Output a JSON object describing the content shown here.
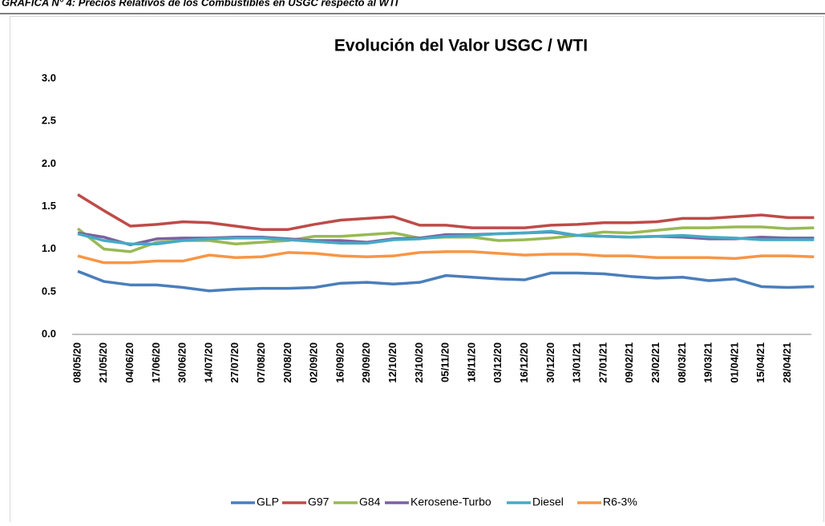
{
  "caption": "GRÁFICA N° 4: Precios Relativos de los Combustibles en USGC respecto al WTI",
  "chart_data": {
    "type": "line",
    "title": "Evolución del Valor USGC / WTI",
    "categories": [
      "08/05/20",
      "21/05/20",
      "04/06/20",
      "17/06/20",
      "30/06/20",
      "14/07/20",
      "27/07/20",
      "07/08/20",
      "20/08/20",
      "02/09/20",
      "16/09/20",
      "29/09/20",
      "12/10/20",
      "23/10/20",
      "05/11/20",
      "18/11/20",
      "03/12/20",
      "16/12/20",
      "30/12/20",
      "13/01/21",
      "27/01/21",
      "09/02/21",
      "23/02/21",
      "08/03/21",
      "19/03/21",
      "01/04/21",
      "15/04/21",
      "28/04/21",
      null
    ],
    "series": [
      {
        "name": "GLP",
        "color": "#4a7ebb",
        "values": [
          0.74,
          0.62,
          0.58,
          0.58,
          0.55,
          0.51,
          0.53,
          0.54,
          0.54,
          0.55,
          0.6,
          0.61,
          0.59,
          0.61,
          0.69,
          0.67,
          0.65,
          0.64,
          0.72,
          0.72,
          0.71,
          0.68,
          0.66,
          0.67,
          0.63,
          0.65,
          0.56,
          0.55,
          0.56
        ]
      },
      {
        "name": "G97",
        "color": "#be4b48",
        "values": [
          1.64,
          1.45,
          1.27,
          1.29,
          1.32,
          1.31,
          1.27,
          1.23,
          1.23,
          1.29,
          1.34,
          1.36,
          1.38,
          1.28,
          1.28,
          1.25,
          1.25,
          1.25,
          1.28,
          1.29,
          1.31,
          1.31,
          1.32,
          1.36,
          1.36,
          1.38,
          1.4,
          1.37,
          1.37
        ]
      },
      {
        "name": "G84",
        "color": "#98b954",
        "values": [
          1.24,
          1.0,
          0.97,
          1.08,
          1.1,
          1.1,
          1.06,
          1.08,
          1.1,
          1.15,
          1.15,
          1.17,
          1.19,
          1.13,
          1.14,
          1.14,
          1.1,
          1.11,
          1.13,
          1.16,
          1.2,
          1.19,
          1.22,
          1.25,
          1.25,
          1.26,
          1.26,
          1.24,
          1.25
        ]
      },
      {
        "name": "Kerosene-Turbo",
        "color": "#7d60a0",
        "values": [
          1.19,
          1.14,
          1.05,
          1.12,
          1.13,
          1.13,
          1.14,
          1.14,
          1.12,
          1.1,
          1.1,
          1.08,
          1.12,
          1.13,
          1.17,
          1.17,
          1.18,
          1.19,
          1.2,
          1.16,
          1.15,
          1.14,
          1.15,
          1.14,
          1.12,
          1.12,
          1.14,
          1.13,
          1.13
        ]
      },
      {
        "name": "Diesel",
        "color": "#46aac5",
        "values": [
          1.18,
          1.1,
          1.06,
          1.06,
          1.1,
          1.12,
          1.13,
          1.13,
          1.11,
          1.09,
          1.07,
          1.07,
          1.11,
          1.12,
          1.15,
          1.16,
          1.18,
          1.19,
          1.21,
          1.16,
          1.15,
          1.14,
          1.15,
          1.16,
          1.14,
          1.13,
          1.11,
          1.11,
          1.11
        ]
      },
      {
        "name": "R6-3%",
        "color": "#f79646",
        "values": [
          0.92,
          0.84,
          0.84,
          0.86,
          0.86,
          0.93,
          0.9,
          0.91,
          0.96,
          0.95,
          0.92,
          0.91,
          0.92,
          0.96,
          0.97,
          0.97,
          0.95,
          0.93,
          0.94,
          0.94,
          0.92,
          0.92,
          0.9,
          0.9,
          0.9,
          0.89,
          0.92,
          0.92,
          0.91
        ]
      }
    ],
    "ylim": [
      0,
      3
    ],
    "yticks": [
      {
        "value": 0,
        "label": "0.0"
      },
      0.5,
      {
        "value": 1,
        "label": "1.0"
      },
      1.5,
      {
        "value": 2,
        "label": "2.0"
      },
      2.5,
      {
        "value": 3,
        "label": "3.0"
      }
    ],
    "grid": false,
    "legend": "bottom"
  }
}
